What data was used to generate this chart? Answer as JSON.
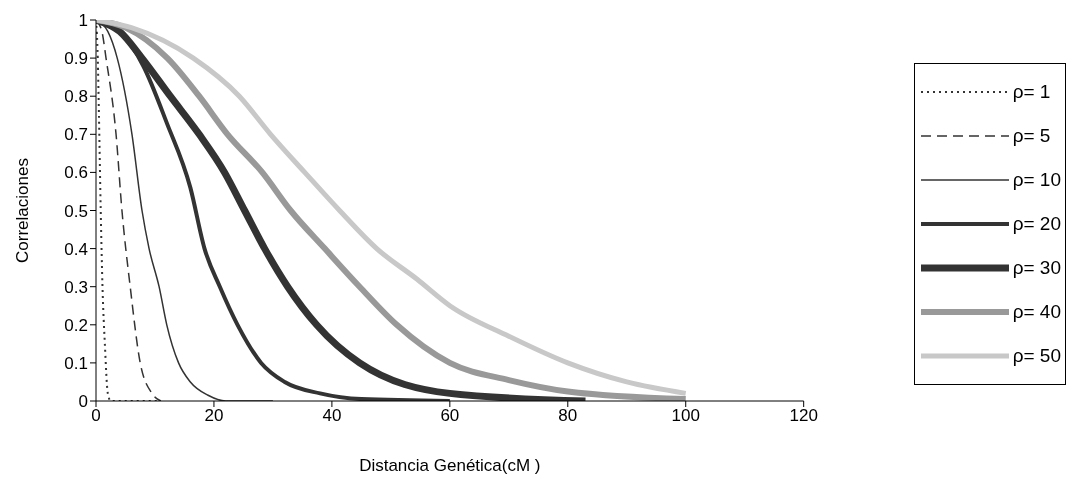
{
  "chart_data": {
    "type": "line",
    "xlabel": "Distancia Genética(cM )",
    "ylabel": "Correlaciones",
    "xlim": [
      0,
      120
    ],
    "xticks": [
      0,
      20,
      40,
      60,
      80,
      100,
      120
    ],
    "ylim": [
      0,
      1
    ],
    "yticks": [
      0,
      0.1,
      0.2,
      0.3,
      0.4,
      0.5,
      0.6,
      0.7,
      0.8,
      0.9,
      1
    ],
    "grid": false,
    "legend": "right",
    "marker": "none",
    "series": [
      {
        "name": "ρ= 1",
        "color": "#333333",
        "line_style": "dotted",
        "x": [
          0,
          0.3,
          0.5,
          0.8,
          1.1,
          1.5,
          2,
          2.5,
          11
        ],
        "values": [
          1,
          0.9,
          0.75,
          0.5,
          0.3,
          0.15,
          0.02,
          0,
          0
        ]
      },
      {
        "name": "ρ= 5",
        "color": "#333333",
        "line_style": "dashed",
        "x": [
          0,
          1,
          1.7,
          3.4,
          4.4,
          5.8,
          7.5,
          9.5,
          11
        ],
        "values": [
          1,
          0.97,
          0.9,
          0.7,
          0.5,
          0.3,
          0.1,
          0.02,
          0
        ]
      },
      {
        "name": "ρ= 10",
        "color": "#333333",
        "line_style": "solid",
        "x": [
          0,
          2,
          3.6,
          6.1,
          7.8,
          9,
          10.7,
          12,
          14,
          16,
          19,
          22,
          30
        ],
        "values": [
          1,
          0.97,
          0.9,
          0.7,
          0.5,
          0.4,
          0.3,
          0.2,
          0.1,
          0.05,
          0.015,
          0,
          0
        ]
      },
      {
        "name": "ρ= 20",
        "color": "#333333",
        "line_style": "solid",
        "x": [
          0,
          4,
          8,
          12,
          16,
          18.4,
          21,
          24,
          28,
          32,
          38,
          45,
          60
        ],
        "values": [
          1,
          0.97,
          0.88,
          0.73,
          0.56,
          0.4,
          0.3,
          0.2,
          0.1,
          0.05,
          0.02,
          0.005,
          0
        ]
      },
      {
        "name": "ρ= 30",
        "color": "#333333",
        "line_style": "solid",
        "x": [
          0,
          4,
          7.8,
          12.6,
          17.5,
          21.8,
          25.2,
          28.6,
          32.5,
          37.4,
          44.7,
          60,
          83
        ],
        "values": [
          1,
          0.97,
          0.9,
          0.8,
          0.7,
          0.6,
          0.5,
          0.4,
          0.3,
          0.2,
          0.1,
          0.02,
          0
        ]
      },
      {
        "name": "ρ= 40",
        "color": "#999999",
        "line_style": "solid",
        "x": [
          0,
          5,
          12.1,
          17.5,
          22.3,
          28.2,
          33,
          38.8,
          44.7,
          51,
          60,
          70,
          80,
          100
        ],
        "values": [
          1,
          0.98,
          0.9,
          0.8,
          0.7,
          0.6,
          0.5,
          0.4,
          0.3,
          0.2,
          0.1,
          0.055,
          0.025,
          0.005
        ]
      },
      {
        "name": "ρ= 50",
        "color": "#c8c8c8",
        "line_style": "solid",
        "x": [
          0,
          6,
          16.5,
          24.3,
          29.6,
          35.4,
          41.3,
          47.6,
          54.4,
          60,
          70,
          80,
          90,
          100
        ],
        "values": [
          1,
          0.98,
          0.9,
          0.8,
          0.7,
          0.6,
          0.5,
          0.4,
          0.32,
          0.25,
          0.17,
          0.1,
          0.05,
          0.02
        ]
      }
    ]
  }
}
